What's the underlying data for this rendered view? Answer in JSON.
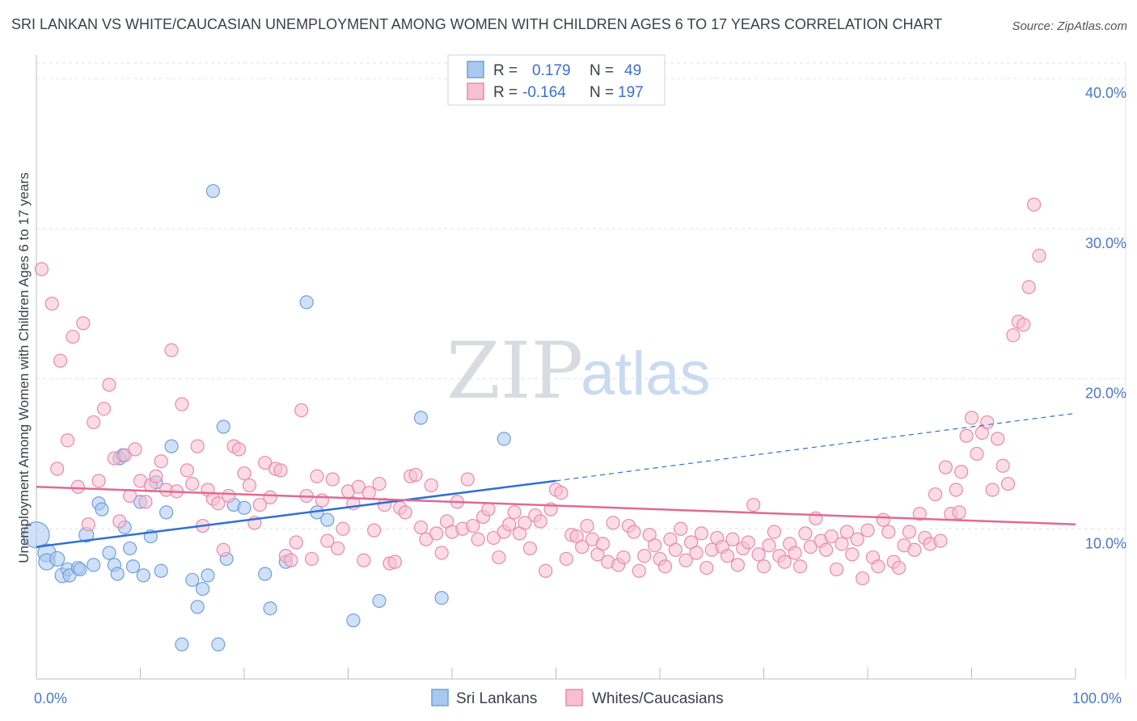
{
  "title": "SRI LANKAN VS WHITE/CAUCASIAN UNEMPLOYMENT AMONG WOMEN WITH CHILDREN AGES 6 TO 17 YEARS CORRELATION CHART",
  "source": "Source: ZipAtlas.com",
  "watermark": {
    "zip": "ZIP",
    "atlas": "atlas"
  },
  "legend": {
    "r_label": "R =",
    "n_label": "N =",
    "rows": [
      {
        "r": "0.179",
        "n": "49",
        "color": "#a9c8f0",
        "stroke": "#6f9fdc"
      },
      {
        "r": "-0.164",
        "n": "197",
        "color": "#f7bfd2",
        "stroke": "#e88aab"
      }
    ]
  },
  "chart_data": {
    "type": "scatter",
    "title": "SRI LANKAN VS WHITE/CAUCASIAN UNEMPLOYMENT AMONG WOMEN WITH CHILDREN AGES 6 TO 17 YEARS CORRELATION CHART",
    "xlabel": "",
    "ylabel": "Unemployment Among Women with Children Ages 6 to 17 years",
    "xlim": [
      0,
      100
    ],
    "ylim": [
      0,
      42
    ],
    "x_tick_labels": [
      "0.0%",
      "100.0%"
    ],
    "y_ticks": [
      10,
      20,
      30,
      40
    ],
    "y_tick_labels": [
      "10.0%",
      "20.0%",
      "30.0%",
      "40.0%"
    ],
    "grid": true,
    "legend_position": "bottom",
    "series": [
      {
        "name": "Sri Lankans",
        "color": "#a9c8f0",
        "stroke": "#6f9fdc",
        "line_color": "#2f6fd6",
        "trend": {
          "x0": 0,
          "y0": 8.8,
          "x1": 50,
          "y1": 13.2,
          "dashed_to_x": 100,
          "dashed_to_y": 17.7
        },
        "points": [
          [
            0,
            9.6,
            16
          ],
          [
            1,
            8.4,
            11
          ],
          [
            1,
            7.8,
            10
          ],
          [
            2,
            8.0,
            9
          ],
          [
            2.5,
            6.9,
            9
          ],
          [
            3,
            7.3,
            8
          ],
          [
            3.2,
            6.9,
            8
          ],
          [
            4,
            7.4,
            8
          ],
          [
            4.2,
            7.3,
            8
          ],
          [
            4.8,
            9.6,
            9
          ],
          [
            5.5,
            7.6,
            8
          ],
          [
            6,
            11.7,
            8
          ],
          [
            6.3,
            11.3,
            8
          ],
          [
            7,
            8.4,
            8
          ],
          [
            7.5,
            7.6,
            8
          ],
          [
            7.8,
            7.0,
            8
          ],
          [
            8,
            14.7,
            8
          ],
          [
            8.3,
            14.9,
            8
          ],
          [
            8.5,
            10.1,
            8
          ],
          [
            9,
            8.7,
            8
          ],
          [
            9.3,
            7.5,
            8
          ],
          [
            10,
            11.8,
            8
          ],
          [
            10.3,
            6.9,
            8
          ],
          [
            11,
            9.5,
            8
          ],
          [
            11.5,
            13.1,
            8
          ],
          [
            12,
            7.2,
            8
          ],
          [
            12.5,
            11.1,
            8
          ],
          [
            13,
            15.5,
            8
          ],
          [
            14,
            2.3,
            8
          ],
          [
            15,
            6.6,
            8
          ],
          [
            15.5,
            4.8,
            8
          ],
          [
            16,
            6.0,
            8
          ],
          [
            16.5,
            6.9,
            8
          ],
          [
            17.5,
            2.3,
            8
          ],
          [
            18,
            16.8,
            8
          ],
          [
            18.3,
            8.0,
            8
          ],
          [
            17,
            32.5,
            8
          ],
          [
            19,
            11.6,
            8
          ],
          [
            20,
            11.4,
            8
          ],
          [
            22,
            7.0,
            8
          ],
          [
            22.5,
            4.7,
            8
          ],
          [
            24,
            7.8,
            8
          ],
          [
            26,
            25.1,
            8
          ],
          [
            27,
            11.1,
            8
          ],
          [
            28,
            10.6,
            8
          ],
          [
            30.5,
            3.9,
            8
          ],
          [
            33,
            5.2,
            8
          ],
          [
            37,
            17.4,
            8
          ],
          [
            39,
            5.4,
            8
          ],
          [
            45,
            16.0,
            8
          ]
        ]
      },
      {
        "name": "Whites/Caucasians",
        "color": "#f7bfd2",
        "stroke": "#e88aab",
        "line_color": "#e06a94",
        "trend": {
          "x0": 0,
          "y0": 12.8,
          "x1": 100,
          "y1": 10.3
        },
        "points": [
          [
            0.5,
            27.3
          ],
          [
            1.5,
            25.0
          ],
          [
            2,
            14.0
          ],
          [
            2.3,
            21.2
          ],
          [
            3,
            15.9
          ],
          [
            3.5,
            22.8
          ],
          [
            4,
            12.8
          ],
          [
            4.5,
            23.7
          ],
          [
            5,
            10.3
          ],
          [
            5.5,
            17.1
          ],
          [
            6,
            13.2
          ],
          [
            6.5,
            18.0
          ],
          [
            7,
            19.6
          ],
          [
            7.5,
            14.7
          ],
          [
            8,
            10.5
          ],
          [
            8.5,
            14.9
          ],
          [
            9,
            12.2
          ],
          [
            9.5,
            15.3
          ],
          [
            10,
            13.2
          ],
          [
            10.5,
            11.8
          ],
          [
            11,
            12.9
          ],
          [
            11.5,
            13.5
          ],
          [
            12,
            14.5
          ],
          [
            12.5,
            12.6
          ],
          [
            13,
            21.9
          ],
          [
            13.5,
            12.5
          ],
          [
            14,
            18.3
          ],
          [
            14.5,
            13.9
          ],
          [
            15,
            13.0
          ],
          [
            15.5,
            15.5
          ],
          [
            16,
            10.2
          ],
          [
            16.5,
            12.6
          ],
          [
            17,
            12.0
          ],
          [
            17.5,
            11.7
          ],
          [
            18,
            8.6
          ],
          [
            18.5,
            12.2
          ],
          [
            19,
            15.5
          ],
          [
            19.5,
            15.3
          ],
          [
            20,
            13.7
          ],
          [
            20.5,
            12.9
          ],
          [
            21,
            10.4
          ],
          [
            21.5,
            11.6
          ],
          [
            22,
            14.4
          ],
          [
            22.5,
            12.1
          ],
          [
            23,
            14.0
          ],
          [
            23.5,
            13.9
          ],
          [
            24,
            8.2
          ],
          [
            24.5,
            7.9
          ],
          [
            25,
            9.1
          ],
          [
            25.5,
            17.9
          ],
          [
            26,
            12.2
          ],
          [
            26.5,
            8.0
          ],
          [
            27,
            13.5
          ],
          [
            27.5,
            11.9
          ],
          [
            28,
            9.2
          ],
          [
            28.5,
            13.3
          ],
          [
            29,
            8.7
          ],
          [
            29.5,
            10.0
          ],
          [
            30,
            12.5
          ],
          [
            30.5,
            11.7
          ],
          [
            31,
            12.8
          ],
          [
            31.5,
            7.9
          ],
          [
            32,
            12.4
          ],
          [
            32.5,
            9.9
          ],
          [
            33,
            13.0
          ],
          [
            33.5,
            11.6
          ],
          [
            34,
            7.7
          ],
          [
            34.5,
            7.8
          ],
          [
            35,
            11.4
          ],
          [
            35.5,
            11.1
          ],
          [
            36,
            13.5
          ],
          [
            36.5,
            13.6
          ],
          [
            37,
            10.1
          ],
          [
            37.5,
            9.3
          ],
          [
            38,
            12.9
          ],
          [
            38.5,
            9.7
          ],
          [
            39,
            8.4
          ],
          [
            39.5,
            10.5
          ],
          [
            40,
            9.8
          ],
          [
            40.5,
            11.8
          ],
          [
            41,
            10.0
          ],
          [
            41.5,
            13.3
          ],
          [
            42,
            10.2
          ],
          [
            42.5,
            9.3
          ],
          [
            43,
            10.8
          ],
          [
            43.5,
            11.3
          ],
          [
            44,
            9.4
          ],
          [
            44.5,
            8.1
          ],
          [
            45,
            9.8
          ],
          [
            45.5,
            10.3
          ],
          [
            46,
            11.1
          ],
          [
            46.5,
            9.7
          ],
          [
            47,
            10.4
          ],
          [
            47.5,
            8.7
          ],
          [
            48,
            10.9
          ],
          [
            48.5,
            10.5
          ],
          [
            49,
            7.2
          ],
          [
            49.5,
            11.3
          ],
          [
            50,
            12.6
          ],
          [
            50.5,
            12.4
          ],
          [
            51,
            8.0
          ],
          [
            51.5,
            9.6
          ],
          [
            52,
            9.5
          ],
          [
            52.5,
            8.8
          ],
          [
            53,
            10.2
          ],
          [
            53.5,
            9.3
          ],
          [
            54,
            8.3
          ],
          [
            54.5,
            9.0
          ],
          [
            55,
            7.8
          ],
          [
            55.5,
            10.4
          ],
          [
            56,
            7.6
          ],
          [
            56.5,
            8.1
          ],
          [
            57,
            10.2
          ],
          [
            57.5,
            9.8
          ],
          [
            58,
            7.2
          ],
          [
            58.5,
            8.2
          ],
          [
            59,
            9.6
          ],
          [
            59.5,
            8.9
          ],
          [
            60,
            8.0
          ],
          [
            60.5,
            7.5
          ],
          [
            61,
            9.3
          ],
          [
            61.5,
            8.6
          ],
          [
            62,
            10.0
          ],
          [
            62.5,
            7.9
          ],
          [
            63,
            9.1
          ],
          [
            63.5,
            8.4
          ],
          [
            64,
            9.7
          ],
          [
            64.5,
            7.4
          ],
          [
            65,
            8.6
          ],
          [
            65.5,
            9.4
          ],
          [
            66,
            8.8
          ],
          [
            66.5,
            8.2
          ],
          [
            67,
            9.3
          ],
          [
            67.5,
            7.6
          ],
          [
            68,
            8.7
          ],
          [
            68.5,
            9.1
          ],
          [
            69,
            11.6
          ],
          [
            69.5,
            8.3
          ],
          [
            70,
            7.5
          ],
          [
            70.5,
            8.9
          ],
          [
            71,
            9.8
          ],
          [
            71.5,
            8.2
          ],
          [
            72,
            7.8
          ],
          [
            72.5,
            9.0
          ],
          [
            73,
            8.4
          ],
          [
            73.5,
            7.5
          ],
          [
            74,
            9.7
          ],
          [
            74.5,
            8.8
          ],
          [
            75,
            10.7
          ],
          [
            75.5,
            9.2
          ],
          [
            76,
            8.6
          ],
          [
            76.5,
            9.5
          ],
          [
            77,
            7.3
          ],
          [
            77.5,
            9.0
          ],
          [
            78,
            9.8
          ],
          [
            78.5,
            8.3
          ],
          [
            79,
            9.3
          ],
          [
            79.5,
            6.7
          ],
          [
            80,
            9.9
          ],
          [
            80.5,
            8.1
          ],
          [
            81,
            7.5
          ],
          [
            81.5,
            10.6
          ],
          [
            82,
            9.8
          ],
          [
            82.5,
            7.8
          ],
          [
            83,
            7.4
          ],
          [
            83.5,
            8.9
          ],
          [
            84,
            9.8
          ],
          [
            84.5,
            8.6
          ],
          [
            85,
            11.0
          ],
          [
            85.5,
            9.4
          ],
          [
            86,
            9.0
          ],
          [
            86.5,
            12.3
          ],
          [
            87,
            9.2
          ],
          [
            87.5,
            14.1
          ],
          [
            88,
            11.0
          ],
          [
            88.5,
            12.6
          ],
          [
            89,
            13.8
          ],
          [
            89.5,
            16.2
          ],
          [
            90,
            17.4
          ],
          [
            90.5,
            15.0
          ],
          [
            91,
            16.4
          ],
          [
            91.5,
            17.1
          ],
          [
            92,
            12.6
          ],
          [
            92.5,
            16.0
          ],
          [
            93,
            14.2
          ],
          [
            93.5,
            13.0
          ],
          [
            94,
            22.9
          ],
          [
            94.5,
            23.8
          ],
          [
            95,
            23.6
          ],
          [
            95.5,
            26.1
          ],
          [
            96,
            31.6
          ],
          [
            96.5,
            28.2
          ],
          [
            88.8,
            11.1
          ]
        ]
      }
    ]
  },
  "bottom_legend": [
    "Sri Lankans",
    "Whites/Caucasians"
  ]
}
